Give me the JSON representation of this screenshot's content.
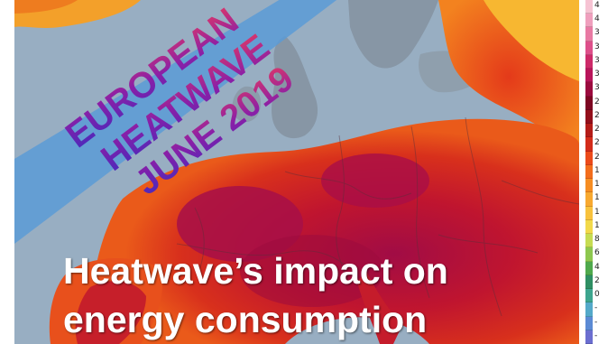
{
  "headline": {
    "line1": "Heatwave’s impact on",
    "line2": "energy consumption"
  },
  "banner": {
    "line1": "EUROPEAN",
    "line2": "HEATWAVE",
    "line3": "JUNE 2019"
  },
  "legend": {
    "labels": [
      "4",
      "4",
      "3",
      "3",
      "3",
      "3",
      "3",
      "2",
      "2",
      "2",
      "2",
      "2",
      "1",
      "1",
      "1",
      "1",
      "1",
      "8",
      "6",
      "4",
      "2",
      "0",
      "-",
      "-",
      "-"
    ],
    "colors": [
      "#f6c3d3",
      "#ef9fbd",
      "#e879a3",
      "#dd4f8a",
      "#cd2a69",
      "#b8145a",
      "#9b0a3e",
      "#7d0622",
      "#930f1b",
      "#b41c18",
      "#d32c1a",
      "#ec4a1a",
      "#f36d1c",
      "#f68d22",
      "#f8a930",
      "#f8c23d",
      "#f2d94a",
      "#c6dc52",
      "#8dc74f",
      "#4fa94c",
      "#2f8f63",
      "#3da58e",
      "#54a9c9",
      "#5b8ad4",
      "#6b6ed0"
    ]
  },
  "colors": {
    "sea": "#98aec2",
    "land_cool": "#8a9cab",
    "band": "#5b9bd6",
    "hot_red": "#c0152f",
    "hot_magenta": "#a8104a",
    "orange": "#f06a1c",
    "yellow": "#f7b731"
  }
}
